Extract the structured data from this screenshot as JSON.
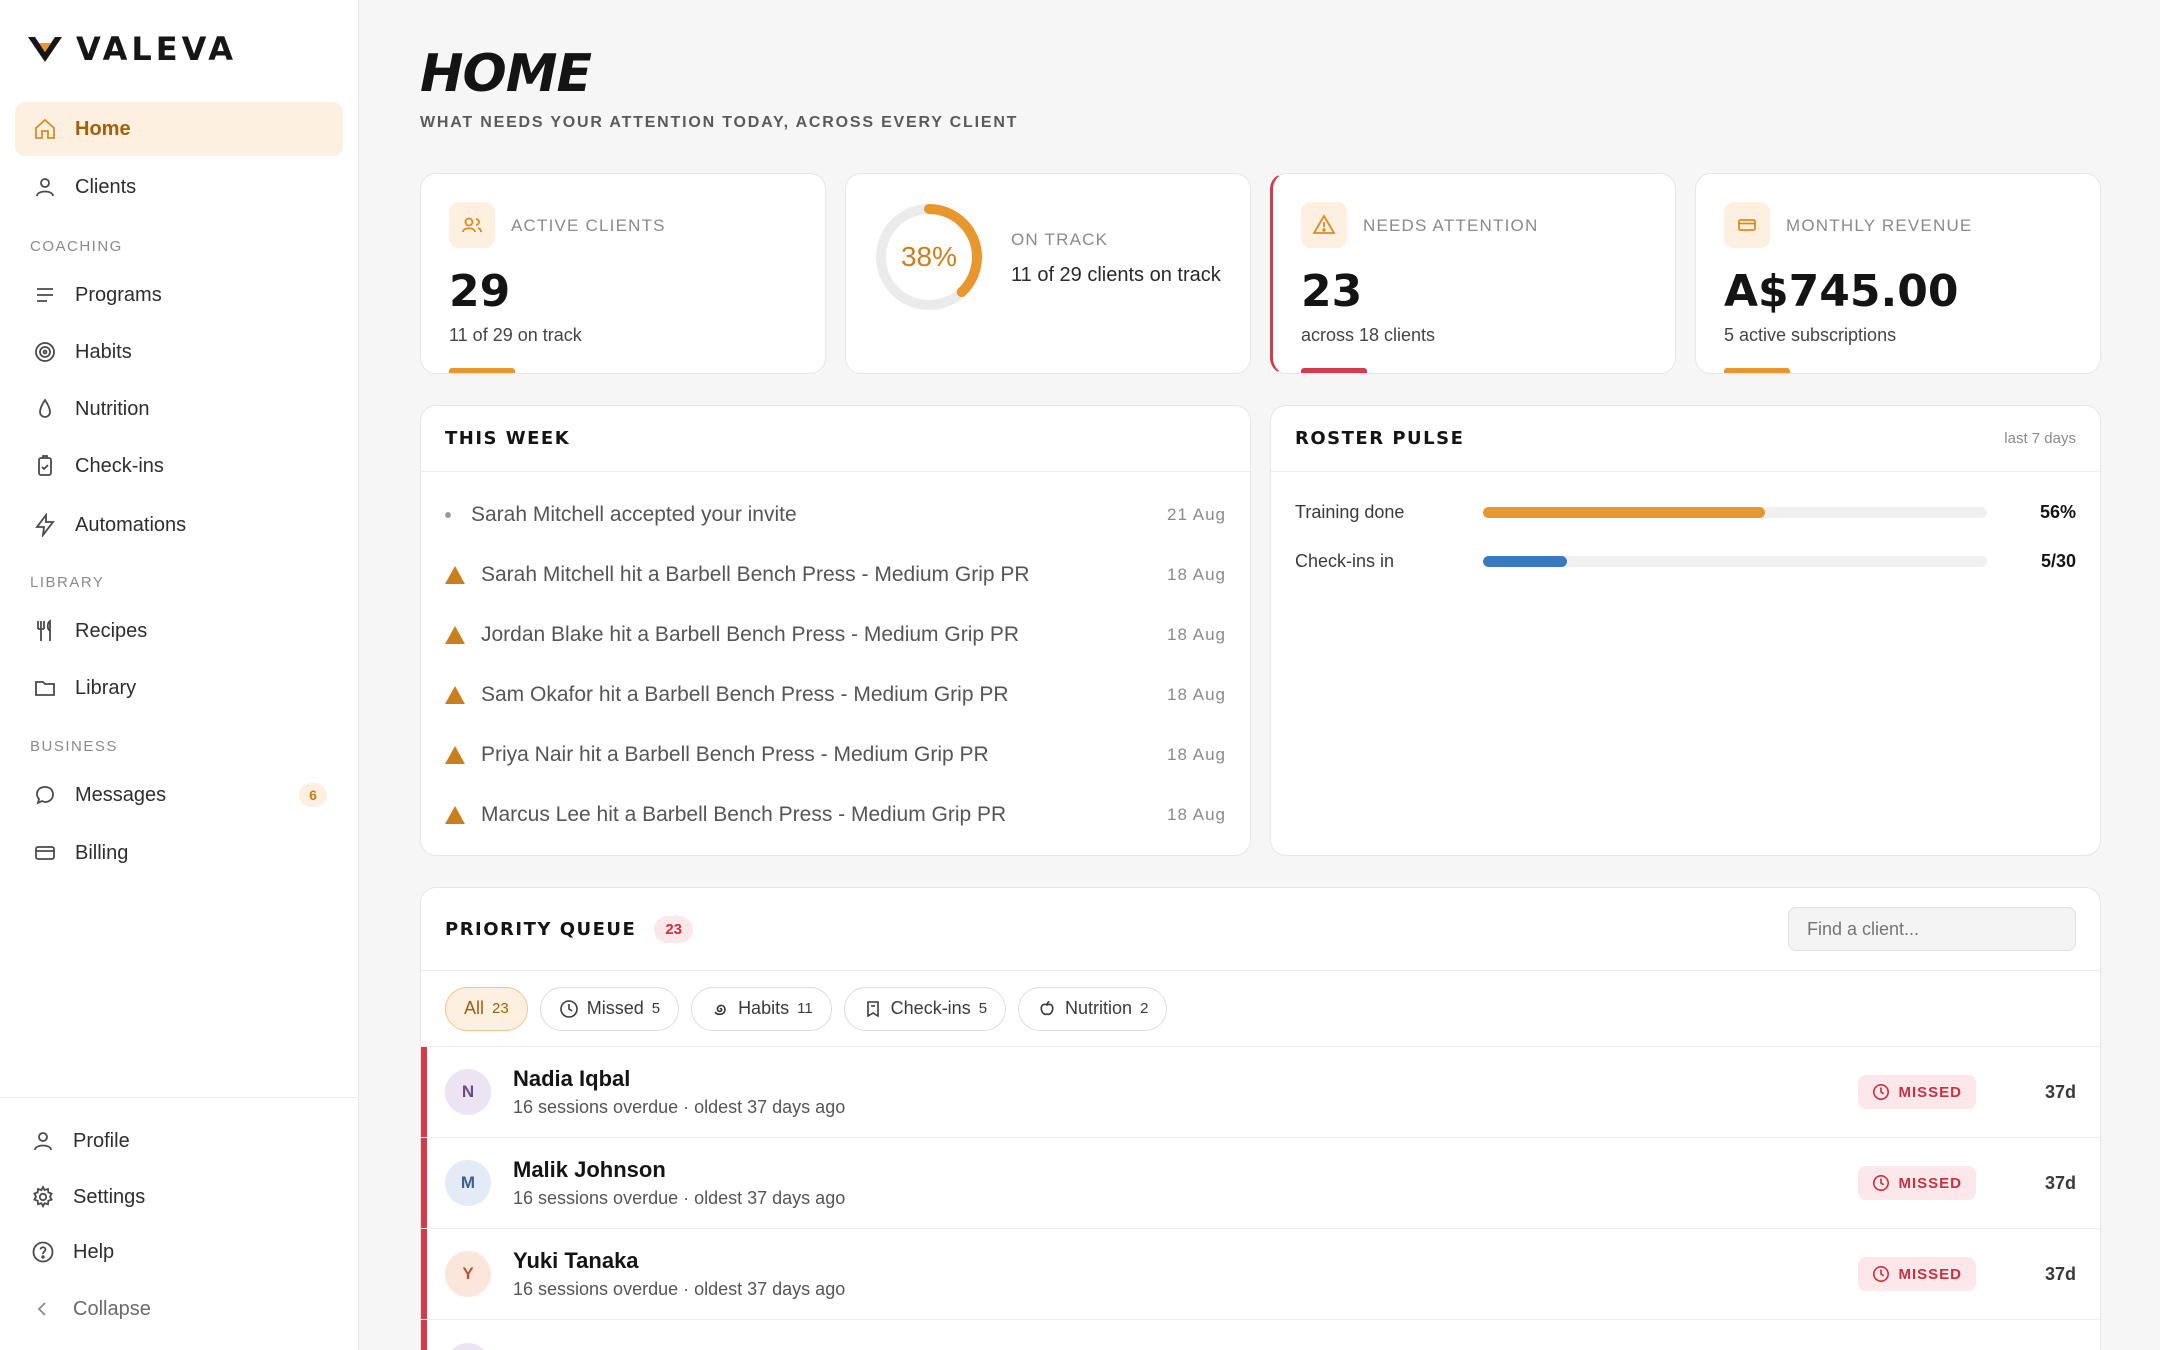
{
  "brand": {
    "name": "VALEVA"
  },
  "nav": {
    "home": "Home",
    "clients": "Clients",
    "coaching_section": "COACHING",
    "programs": "Programs",
    "habits": "Habits",
    "nutrition": "Nutrition",
    "checkins": "Check-ins",
    "automations": "Automations",
    "library_section": "LIBRARY",
    "recipes": "Recipes",
    "library": "Library",
    "business_section": "BUSINESS",
    "messages": "Messages",
    "messages_count": "6",
    "billing": "Billing",
    "profile": "Profile",
    "settings": "Settings",
    "help": "Help",
    "collapse": "Collapse"
  },
  "header": {
    "title": "HOME",
    "subtitle": "WHAT NEEDS YOUR ATTENTION TODAY, ACROSS EVERY CLIENT"
  },
  "stats": {
    "active_clients": {
      "label": "ACTIVE CLIENTS",
      "value": "29",
      "note": "11 of 29 on track"
    },
    "on_track": {
      "label": "ON TRACK",
      "percent_text": "38%",
      "percent": 38,
      "note": "11 of 29 clients on track"
    },
    "needs_attention": {
      "label": "NEEDS ATTENTION",
      "value": "23",
      "note": "across 18 clients"
    },
    "monthly_revenue": {
      "label": "MONTHLY REVENUE",
      "value": "A$745.00",
      "note": "5 active subscriptions"
    }
  },
  "this_week": {
    "title": "THIS WEEK",
    "items": [
      {
        "icon": "dot-icon",
        "text": "Sarah Mitchell accepted your invite",
        "date": "21 Aug"
      },
      {
        "icon": "triangle-icon",
        "text": "Sarah Mitchell hit a Barbell Bench Press - Medium Grip PR",
        "date": "18 Aug"
      },
      {
        "icon": "triangle-icon",
        "text": "Jordan Blake hit a Barbell Bench Press - Medium Grip PR",
        "date": "18 Aug"
      },
      {
        "icon": "triangle-icon",
        "text": "Sam Okafor hit a Barbell Bench Press - Medium Grip PR",
        "date": "18 Aug"
      },
      {
        "icon": "triangle-icon",
        "text": "Priya Nair hit a Barbell Bench Press - Medium Grip PR",
        "date": "18 Aug"
      },
      {
        "icon": "triangle-icon",
        "text": "Marcus Lee hit a Barbell Bench Press - Medium Grip PR",
        "date": "18 Aug"
      }
    ]
  },
  "roster_pulse": {
    "title": "ROSTER PULSE",
    "period": "last 7 days",
    "rows": [
      {
        "label": "Training done",
        "value": "56%",
        "fraction": 0.56,
        "color": "#e8962e"
      },
      {
        "label": "Check-ins in",
        "value": "5/30",
        "fraction": 0.1667,
        "color": "#3a78c4"
      }
    ]
  },
  "priority_queue": {
    "title": "PRIORITY QUEUE",
    "count": "23",
    "search_placeholder": "Find a client...",
    "filters": [
      {
        "label": "All",
        "count": "23",
        "icon": ""
      },
      {
        "label": "Missed",
        "count": "5",
        "icon": "clock-icon"
      },
      {
        "label": "Habits",
        "count": "11",
        "icon": "spiral-icon"
      },
      {
        "label": "Check-ins",
        "count": "5",
        "icon": "clipboard-icon"
      },
      {
        "label": "Nutrition",
        "count": "2",
        "icon": "apple-icon"
      }
    ],
    "rows": [
      {
        "initial": "N",
        "name": "Nadia Iqbal",
        "detail": "16 sessions overdue · oldest 37 days ago",
        "status": "MISSED",
        "age": "37d",
        "avatar_bg": "#ece4f3",
        "avatar_fg": "#6b4a8a"
      },
      {
        "initial": "M",
        "name": "Malik Johnson",
        "detail": "16 sessions overdue · oldest 37 days ago",
        "status": "MISSED",
        "age": "37d",
        "avatar_bg": "#e3ebf6",
        "avatar_fg": "#3f5f8a"
      },
      {
        "initial": "Y",
        "name": "Yuki Tanaka",
        "detail": "16 sessions overdue · oldest 37 days ago",
        "status": "MISSED",
        "age": "37d",
        "avatar_bg": "#fbe6dc",
        "avatar_fg": "#b0583a"
      }
    ]
  },
  "colors": {
    "accent": "#e8962e",
    "danger": "#d23a4e",
    "blue": "#3a78c4"
  }
}
